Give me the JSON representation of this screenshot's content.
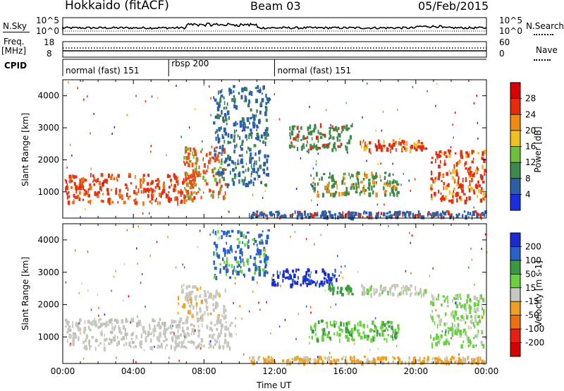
{
  "header": {
    "station": "Hokkaido (fitACF)",
    "beam": "Beam 03",
    "date": "05/Feb/2015"
  },
  "top_panels": {
    "nsky_label": "N.Sky",
    "nsky_ticks": [
      "10^5",
      "10^0"
    ],
    "nsearch_label": "N.Search",
    "nsearch_ticks": [
      "10^5",
      "10^0"
    ],
    "freq_label": "Freq.",
    "freq_unit": "[MHz]",
    "freq_ticks": [
      "18",
      "8"
    ],
    "nave_label": "Nave",
    "nave_ticks": [
      "60",
      "0"
    ],
    "cpid_label": "CPID",
    "cpid_segments": [
      {
        "label": "normal (fast) 151",
        "start_h": 0,
        "end_h": 6
      },
      {
        "label": "rbsp 200",
        "start_h": 6,
        "end_h": 12
      },
      {
        "label": "normal (fast) 151",
        "start_h": 12,
        "end_h": 24
      }
    ]
  },
  "chart_data": [
    {
      "type": "heatmap",
      "title": "",
      "xlabel": "",
      "ylabel": "Slant Range [km]",
      "xlim": [
        0,
        24
      ],
      "ylim": [
        180,
        4500
      ],
      "y_ticks": [
        "1000",
        "2000",
        "3000",
        "4000"
      ],
      "colorbar": {
        "label": "Power [dB]",
        "ticks": [
          "4",
          "8",
          "12",
          "16",
          "20",
          "24",
          "28"
        ],
        "colors": [
          "#1a2ee0",
          "#2b5fa8",
          "#3d8a4a",
          "#6fbf3a",
          "#f0c020",
          "#f08a10",
          "#e82a0a",
          "#d80000"
        ]
      }
    },
    {
      "type": "heatmap",
      "title": "",
      "xlabel": "Time UT",
      "ylabel": "Slant Range [km]",
      "xlim": [
        0,
        24
      ],
      "ylim": [
        180,
        4500
      ],
      "x_ticks": [
        "00:00",
        "04:00",
        "08:00",
        "12:00",
        "16:00",
        "20:00",
        "00:00"
      ],
      "y_ticks": [
        "1000",
        "2000",
        "3000",
        "4000"
      ],
      "colorbar": {
        "label": "Velocity [m s-1]",
        "ticks": [
          "200",
          "100",
          "50",
          "15",
          "-15",
          "-50",
          "-100",
          "-200"
        ],
        "colors": [
          "#1a2bd0",
          "#2a60c8",
          "#3a9a40",
          "#6ad040",
          "#c8c8c0",
          "#f0a020",
          "#f07010",
          "#e82010",
          "#d80000"
        ]
      }
    }
  ],
  "echo_regions": {
    "power": [
      {
        "name": "near-range band",
        "t0": 0.1,
        "t1": 7.6,
        "r0": 650,
        "r1": 1550,
        "color": "#e83010",
        "speckle": "#f07018"
      },
      {
        "name": "near-range rise",
        "t0": 6.8,
        "t1": 9.2,
        "r0": 800,
        "r1": 2400,
        "color": "#e85018",
        "speckle": "#6fbf3a"
      },
      {
        "name": "oblique streaks",
        "t0": 8.5,
        "t1": 11.6,
        "r0": 1200,
        "r1": 4300,
        "color": "#2b5fa8",
        "speckle": "#3d8a4a"
      },
      {
        "name": "far band",
        "t0": 12.8,
        "t1": 16.3,
        "r0": 2300,
        "r1": 3100,
        "color": "#3d8a4a",
        "speckle": "#e82a0a"
      },
      {
        "name": "far patches",
        "t0": 16.8,
        "t1": 20.5,
        "r0": 2300,
        "r1": 2600,
        "color": "#e82a0a",
        "speckle": "#f0c020"
      },
      {
        "name": "mid band",
        "t0": 14.0,
        "t1": 19.0,
        "r0": 900,
        "r1": 1600,
        "color": "#3d8a4a",
        "speckle": "#f08a10"
      },
      {
        "name": "dusk return",
        "t0": 20.8,
        "t1": 23.9,
        "r0": 700,
        "r1": 2300,
        "color": "#e83010",
        "speckle": "#f0c020"
      },
      {
        "name": "ground base",
        "t0": 10.5,
        "t1": 23.9,
        "r0": 200,
        "r1": 380,
        "color": "#2b5fa8",
        "speckle": "#e82a0a"
      }
    ],
    "velocity": [
      {
        "name": "near-range band",
        "t0": 0.1,
        "t1": 9.5,
        "r0": 650,
        "r1": 1550,
        "color": "#c8c8c0",
        "speckle": "#bcbcb4"
      },
      {
        "name": "near-range rise",
        "t0": 6.5,
        "t1": 9.2,
        "r0": 1500,
        "r1": 2600,
        "color": "#c8c8c0",
        "speckle": "#f0a020"
      },
      {
        "name": "oblique streaks",
        "t0": 8.5,
        "t1": 11.6,
        "r0": 2800,
        "r1": 4300,
        "color": "#2a60c8",
        "speckle": "#6ad040"
      },
      {
        "name": "far band",
        "t0": 11.8,
        "t1": 15.5,
        "r0": 2600,
        "r1": 3100,
        "color": "#1a2bd0",
        "speckle": "#2a60c8"
      },
      {
        "name": "far band end",
        "t0": 15.0,
        "t1": 16.4,
        "r0": 2300,
        "r1": 2600,
        "color": "#3a9a40",
        "speckle": "#6ad040"
      },
      {
        "name": "far patches",
        "t0": 16.8,
        "t1": 20.5,
        "r0": 2300,
        "r1": 2600,
        "color": "#c8c8c0",
        "speckle": "#6ad040"
      },
      {
        "name": "mid band",
        "t0": 14.0,
        "t1": 19.0,
        "r0": 900,
        "r1": 1500,
        "color": "#6ad040",
        "speckle": "#3a9a40"
      },
      {
        "name": "dusk return",
        "t0": 20.8,
        "t1": 23.9,
        "r0": 700,
        "r1": 2300,
        "color": "#6ad040",
        "speckle": "#c8c8c0"
      },
      {
        "name": "ground base",
        "t0": 10.5,
        "t1": 23.9,
        "r0": 200,
        "r1": 380,
        "color": "#f0a020",
        "speckle": "#c8c8c0"
      }
    ]
  }
}
